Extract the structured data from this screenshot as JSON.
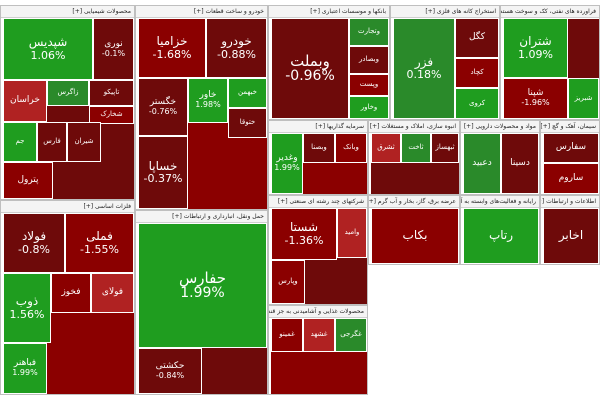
{
  "colors": {
    "strong_up": "#1f9d1f",
    "up": "#2a8a2a",
    "strong_down": "#8b0000",
    "down": "#6e0a0a",
    "flat": "#b02222"
  },
  "chart_data": {
    "type": "heatmap",
    "sectors": [
      {
        "name": "محصولات شیمیایی",
        "stocks": [
          {
            "symbol": "شپدیس",
            "change": "1.06%"
          },
          {
            "symbol": "نوری",
            "change": "-0.1%"
          },
          {
            "symbol": "خراسان",
            "change": ""
          },
          {
            "symbol": "زاگرس",
            "change": ""
          },
          {
            "symbol": "تاپیکو",
            "change": ""
          },
          {
            "symbol": "شخارک",
            "change": ""
          },
          {
            "symbol": "جم",
            "change": ""
          },
          {
            "symbol": "فارس",
            "change": ""
          },
          {
            "symbol": "شیران",
            "change": ""
          },
          {
            "symbol": "پترول",
            "change": ""
          }
        ]
      },
      {
        "name": "خودرو و ساخت قطعات",
        "stocks": [
          {
            "symbol": "خزامیا",
            "change": "-1.68%"
          },
          {
            "symbol": "خودرو",
            "change": "-0.88%"
          },
          {
            "symbol": "خگستر",
            "change": "-0.76%"
          },
          {
            "symbol": "خساپا",
            "change": "-0.37%"
          },
          {
            "symbol": "خاور",
            "change": "1.98%"
          },
          {
            "symbol": "خبهمن",
            "change": ""
          },
          {
            "symbol": "ختوقا",
            "change": ""
          }
        ]
      },
      {
        "name": "بانکها و موسسات اعتباری",
        "stocks": [
          {
            "symbol": "وبملت",
            "change": "-0.96%"
          },
          {
            "symbol": "وتجارت",
            "change": ""
          },
          {
            "symbol": "وبصادر",
            "change": ""
          },
          {
            "symbol": "وپست",
            "change": ""
          },
          {
            "symbol": "وخاور",
            "change": ""
          }
        ]
      },
      {
        "name": "استخراج کانه های فلزی",
        "stocks": [
          {
            "symbol": "فزر",
            "change": "0.18%"
          },
          {
            "symbol": "کگل",
            "change": ""
          },
          {
            "symbol": "کچاد",
            "change": ""
          },
          {
            "symbol": "کروی",
            "change": ""
          }
        ]
      },
      {
        "name": "فراورده های نفتی، کک و سوخت هسته ای",
        "stocks": [
          {
            "symbol": "شتران",
            "change": "1.09%"
          },
          {
            "symbol": "شپنا",
            "change": "-1.96%"
          },
          {
            "symbol": "شبریز",
            "change": ""
          }
        ]
      },
      {
        "name": "فلزات اساسی",
        "stocks": [
          {
            "symbol": "فولاد",
            "change": "-0.8%"
          },
          {
            "symbol": "فملی",
            "change": "-1.55%"
          },
          {
            "symbol": "ذوب",
            "change": "1.56%"
          },
          {
            "symbol": "فباهنر",
            "change": "1.99%"
          },
          {
            "symbol": "فخوز",
            "change": ""
          },
          {
            "symbol": "فولای",
            "change": ""
          }
        ]
      },
      {
        "name": "حمل ونقل، انبارداری و ارتباطات",
        "stocks": [
          {
            "symbol": "حفارس",
            "change": "1.99%"
          },
          {
            "symbol": "حکشتی",
            "change": "-0.84%"
          }
        ]
      },
      {
        "name": "سرمایه گذاریها",
        "stocks": [
          {
            "symbol": "وغدیر",
            "change": "1.99%"
          },
          {
            "symbol": "وبصنا",
            "change": ""
          },
          {
            "symbol": "وبانک",
            "change": ""
          }
        ]
      },
      {
        "name": "شرکتهای چند رشته ای صنعتی",
        "stocks": [
          {
            "symbol": "شستا",
            "change": "-1.36%"
          },
          {
            "symbol": "وپارس",
            "change": ""
          },
          {
            "symbol": "وامید",
            "change": ""
          }
        ]
      },
      {
        "name": "محصولات غذایی و آشامیدنی به جز قند",
        "stocks": [
          {
            "symbol": "غمینو",
            "change": ""
          },
          {
            "symbol": "غشهد",
            "change": ""
          },
          {
            "symbol": "غگرجی",
            "change": ""
          }
        ]
      },
      {
        "name": "انبوه سازی، املاک و مستغلات",
        "stocks": [
          {
            "symbol": "ثشرق",
            "change": ""
          },
          {
            "symbol": "ثاخت",
            "change": ""
          },
          {
            "symbol": "ثبهساز",
            "change": ""
          }
        ]
      },
      {
        "name": "مواد و محصولات دارویی",
        "stocks": [
          {
            "symbol": "دعبید",
            "change": ""
          },
          {
            "symbol": "دسینا",
            "change": ""
          }
        ]
      },
      {
        "name": "سیمان، آهک و گچ",
        "stocks": [
          {
            "symbol": "سفارس",
            "change": ""
          },
          {
            "symbol": "ساروم",
            "change": ""
          }
        ]
      },
      {
        "name": "عرضه برق، گاز، بخار و آب گرم",
        "stocks": [
          {
            "symbol": "بکاب",
            "change": ""
          }
        ]
      },
      {
        "name": "رایانه و فعالیت‌های وابسته به آن",
        "stocks": [
          {
            "symbol": "رتاپ",
            "change": ""
          }
        ]
      },
      {
        "name": "اطلاعات و ارتباطات",
        "stocks": [
          {
            "symbol": "اخابر",
            "change": ""
          }
        ]
      }
    ]
  }
}
